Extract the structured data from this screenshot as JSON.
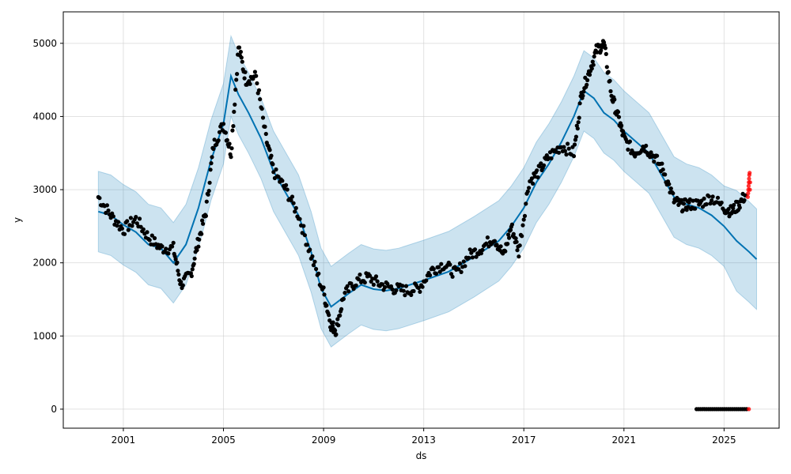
{
  "chart_data": {
    "type": "line",
    "xlabel": "ds",
    "ylabel": "y",
    "xlim": [
      1998.6,
      2027.2
    ],
    "ylim": [
      -260,
      5430
    ],
    "x_ticks": [
      2001,
      2005,
      2009,
      2013,
      2017,
      2021,
      2025
    ],
    "x_tick_labels": [
      "2001",
      "2005",
      "2009",
      "2013",
      "2017",
      "2021",
      "2025"
    ],
    "y_ticks": [
      0,
      1000,
      2000,
      3000,
      4000,
      5000
    ],
    "y_tick_labels": [
      "0",
      "1000",
      "2000",
      "3000",
      "4000",
      "5000"
    ],
    "grid": true,
    "colors": {
      "forecast": "#0072b2",
      "uncertainty": "#0072b2",
      "observed": "#000000",
      "highlight": "#ff0000",
      "grid": "#cccccc"
    },
    "forecast": {
      "x": [
        2000.0,
        2000.5,
        2001.0,
        2001.5,
        2002.0,
        2002.5,
        2003.0,
        2003.5,
        2004.0,
        2004.5,
        2005.0,
        2005.3,
        2005.6,
        2006.0,
        2006.5,
        2007.0,
        2007.5,
        2008.0,
        2008.5,
        2008.9,
        2009.3,
        2010.0,
        2010.5,
        2011.0,
        2011.5,
        2012.0,
        2013.0,
        2014.0,
        2015.0,
        2016.0,
        2016.5,
        2017.0,
        2017.5,
        2018.0,
        2018.5,
        2019.0,
        2019.4,
        2019.8,
        2020.2,
        2020.6,
        2021.0,
        2021.5,
        2022.0,
        2022.5,
        2023.0,
        2023.5,
        2024.0,
        2024.5,
        2025.0,
        2025.5,
        2026.0,
        2026.3
      ],
      "y": [
        2700,
        2650,
        2520,
        2420,
        2250,
        2200,
        2000,
        2250,
        2750,
        3400,
        3900,
        4550,
        4300,
        4050,
        3700,
        3250,
        2950,
        2650,
        2150,
        1650,
        1400,
        1580,
        1700,
        1640,
        1620,
        1650,
        1760,
        1880,
        2080,
        2300,
        2500,
        2750,
        3100,
        3350,
        3650,
        4000,
        4350,
        4250,
        4050,
        3950,
        3800,
        3650,
        3500,
        3200,
        2900,
        2800,
        2750,
        2650,
        2500,
        2300,
        2150,
        2050
      ]
    },
    "uncertainty_width": 550,
    "observed_segments": [
      {
        "x": [
          2000.0,
          2000.5,
          2001.0,
          2001.5,
          2002.0,
          2002.5,
          2003.0,
          2003.3,
          2003.7,
          2004.0,
          2004.3,
          2004.6,
          2005.0,
          2005.3,
          2005.6,
          2005.9,
          2006.3,
          2006.7,
          2007.0,
          2007.5,
          2008.0,
          2008.5,
          2009.0,
          2009.3,
          2009.5,
          2009.8,
          2010.3,
          2010.8,
          2011.3,
          2011.8,
          2012.3,
          2012.8,
          2013.3,
          2013.8,
          2014.3,
          2014.8,
          2015.3,
          2015.8,
          2016.2,
          2016.5,
          2016.8,
          2017.2,
          2017.6,
          2018.0,
          2018.5,
          2019.0,
          2019.3,
          2019.6,
          2019.9,
          2020.2,
          2020.5,
          2020.8,
          2021.0,
          2021.4,
          2021.8,
          2022.2,
          2022.6,
          2023.0,
          2023.3,
          2023.6,
          2024.0,
          2024.5,
          2025.0,
          2025.3,
          2025.6,
          2025.9
        ],
        "y": [
          2900,
          2650,
          2450,
          2600,
          2350,
          2200,
          2200,
          1700,
          1850,
          2300,
          2700,
          3600,
          3900,
          3500,
          4950,
          4500,
          4550,
          3700,
          3250,
          3000,
          2650,
          2100,
          1600,
          1150,
          1080,
          1550,
          1750,
          1800,
          1700,
          1650,
          1620,
          1650,
          1900,
          1980,
          1850,
          2100,
          2200,
          2350,
          2100,
          2500,
          2150,
          3100,
          3250,
          3450,
          3600,
          3500,
          4300,
          4600,
          4900,
          5000,
          4300,
          3950,
          3700,
          3500,
          3600,
          3450,
          3250,
          2850,
          2780,
          2800,
          2800,
          2900,
          2750,
          2700,
          2800,
          2950
        ]
      }
    ],
    "observed_low": {
      "x_start": 2023.9,
      "x_end": 2025.9,
      "y": 0
    },
    "highlight_points": {
      "x": [
        2025.95,
        2025.96,
        2025.97,
        2025.98,
        2025.99,
        2026.0,
        2026.01,
        2026.02,
        2026.03,
        2026.04,
        2025.99
      ],
      "y": [
        2900,
        2950,
        3000,
        3050,
        3100,
        3150,
        3200,
        3230,
        3000,
        3100,
        0
      ]
    }
  }
}
